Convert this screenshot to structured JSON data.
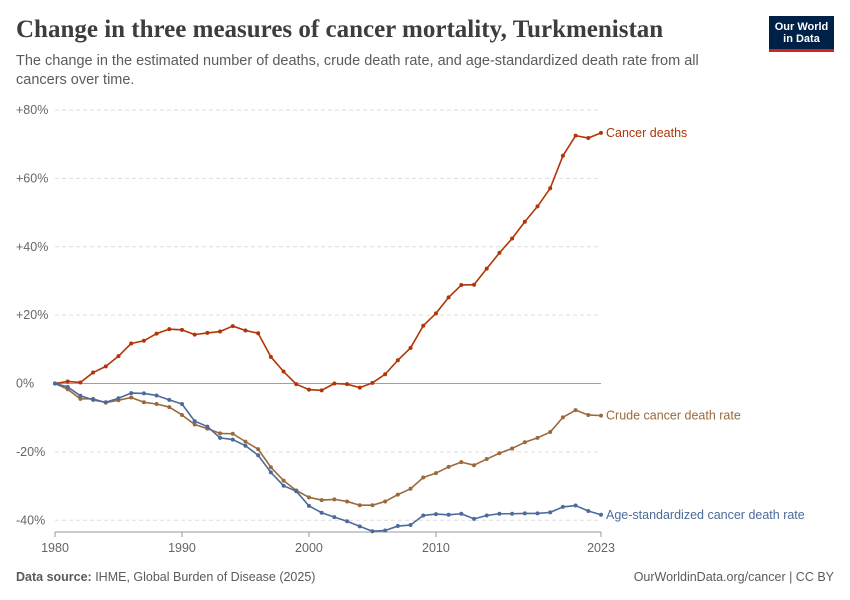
{
  "header": {
    "title": "Change in three measures of cancer mortality, Turkmenistan",
    "subtitle": "The change in the estimated number of deaths, crude death rate, and age-standardized death rate from all cancers over time.",
    "logo_line1": "Our World",
    "logo_line2": "in Data"
  },
  "footer": {
    "source_label": "Data source:",
    "source_text": " IHME, Global Burden of Disease (2025)",
    "credit": "OurWorldinData.org/cancer | CC BY"
  },
  "colors": {
    "cancer_deaths": "#b13507",
    "crude_rate": "#9a6a3c",
    "age_std_rate": "#4c6a9c",
    "grid": "#dddddd",
    "zero_line": "#a0a0a0"
  },
  "chart_data": {
    "type": "line",
    "ylim": [
      -43,
      80
    ],
    "xlim": [
      1980,
      2023
    ],
    "y_ticks": [
      -40,
      -20,
      0,
      20,
      40,
      60,
      80
    ],
    "y_tick_labels": [
      "-40%",
      "-20%",
      "0%",
      "+20%",
      "+40%",
      "+60%",
      "+80%"
    ],
    "x_ticks": [
      1980,
      1990,
      2000,
      2010,
      2023
    ],
    "x_tick_labels": [
      "1980",
      "1990",
      "2000",
      "2010",
      "2023"
    ],
    "x": [
      1980,
      1981,
      1982,
      1983,
      1984,
      1985,
      1986,
      1987,
      1988,
      1989,
      1990,
      1991,
      1992,
      1993,
      1994,
      1995,
      1996,
      1997,
      1998,
      1999,
      2000,
      2001,
      2002,
      2003,
      2004,
      2005,
      2006,
      2007,
      2008,
      2009,
      2010,
      2011,
      2012,
      2013,
      2014,
      2015,
      2016,
      2017,
      2018,
      2019,
      2020,
      2021,
      2022,
      2023
    ],
    "grid": true,
    "legend": "inline-right",
    "series": [
      {
        "name": "Cancer deaths",
        "color_key": "cancer_deaths",
        "values": [
          0,
          0.6,
          0.3,
          3.2,
          5,
          8,
          11.7,
          12.5,
          14.6,
          15.9,
          15.7,
          14.3,
          14.8,
          15.2,
          16.8,
          15.5,
          14.7,
          7.8,
          3.5,
          -0.2,
          -1.8,
          -2,
          0,
          -0.2,
          -1.2,
          0.2,
          2.7,
          6.8,
          10.4,
          16.9,
          20.5,
          25.2,
          28.8,
          28.9,
          33.6,
          38.2,
          42.4,
          47.3,
          51.8,
          57.1,
          66.6,
          72.5,
          71.8,
          73.3
        ]
      },
      {
        "name": "Crude cancer death rate",
        "color_key": "crude_rate",
        "values": [
          0,
          -1.7,
          -4.5,
          -4.5,
          -5.6,
          -4.9,
          -4.1,
          -5.5,
          -6,
          -6.9,
          -9.2,
          -12,
          -13.2,
          -14.6,
          -14.7,
          -17,
          -19.2,
          -24.5,
          -28.4,
          -31.3,
          -33.3,
          -34.1,
          -33.9,
          -34.5,
          -35.6,
          -35.6,
          -34.5,
          -32.5,
          -30.8,
          -27.5,
          -26.2,
          -24.4,
          -23,
          -23.9,
          -22.1,
          -20.4,
          -19,
          -17.2,
          -15.9,
          -14.2,
          -9.9,
          -7.8,
          -9.2,
          -9.4
        ]
      },
      {
        "name": "Age-standardized cancer death rate",
        "color_key": "age_std_rate",
        "values": [
          0,
          -1,
          -3.6,
          -4.8,
          -5.5,
          -4.3,
          -2.8,
          -2.9,
          -3.5,
          -4.8,
          -6,
          -11,
          -12.6,
          -15.9,
          -16.4,
          -18.2,
          -21,
          -26,
          -29.9,
          -31.5,
          -35.8,
          -37.8,
          -39.1,
          -40.3,
          -41.8,
          -43.2,
          -43,
          -41.7,
          -41.4,
          -38.6,
          -38.2,
          -38.4,
          -38.1,
          -39.6,
          -38.6,
          -38.1,
          -38.1,
          -38,
          -38,
          -37.7,
          -36.1,
          -35.7,
          -37.3,
          -38.4
        ]
      }
    ]
  }
}
